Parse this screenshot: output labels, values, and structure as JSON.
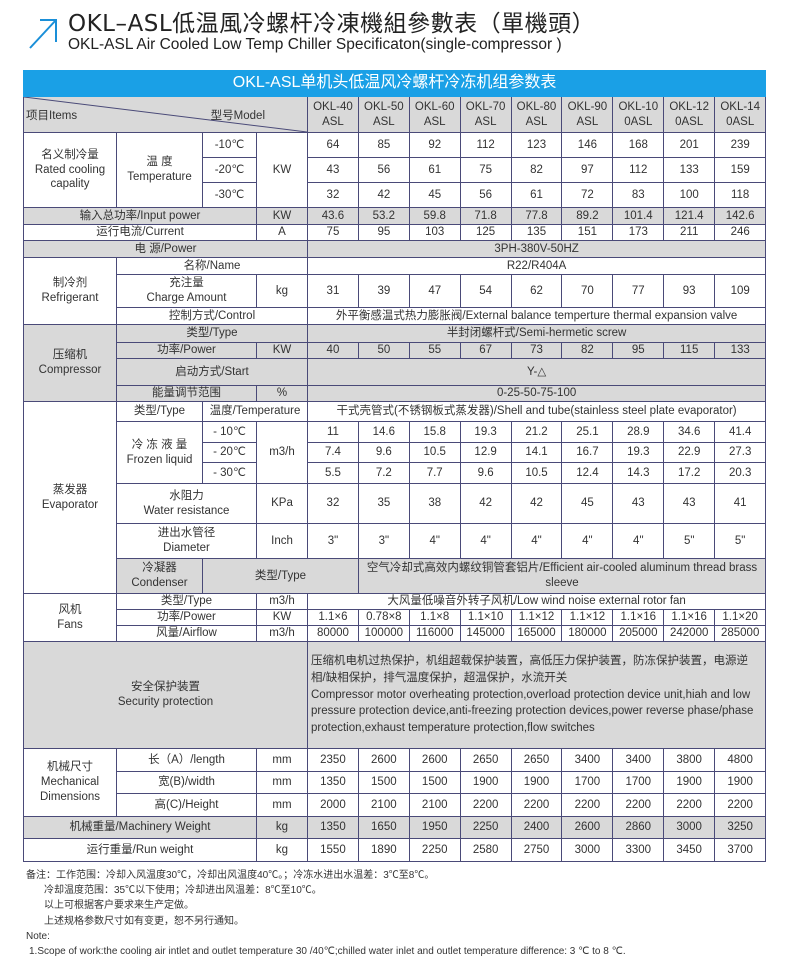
{
  "header": {
    "title_cn": "OKL–ASL低温風冷螺杆冷凍機組參數表（單機頭）",
    "title_en": "OKL-ASL Air Cooled Low Temp Chiller Specificaton(single-compressor )",
    "accent": "#1aa0e6"
  },
  "table": {
    "title": "OKL-ASL单机头低温风冷螺杆冷冻机组参数表",
    "items_label": "项目Items",
    "model_label": "型号Model",
    "models": [
      "OKL-40ASL",
      "OKL-50ASL",
      "OKL-60ASL",
      "OKL-70ASL",
      "OKL-80ASL",
      "OKL-90ASL",
      "OKL-100ASL",
      "OKL-120ASL",
      "OKL-140ASL"
    ],
    "cooling": {
      "label_cn": "名义制冷量",
      "label_en": "Rated cooling",
      "label_en2": "capality",
      "temp_cn": "温  度",
      "temp_en": "Temperature",
      "unit": "KW",
      "rows": [
        {
          "temp": "-10℃",
          "values": [
            "64",
            "85",
            "92",
            "112",
            "123",
            "146",
            "168",
            "201",
            "239"
          ]
        },
        {
          "temp": "-20℃",
          "values": [
            "43",
            "56",
            "61",
            "75",
            "82",
            "97",
            "112",
            "133",
            "159"
          ]
        },
        {
          "temp": "-30℃",
          "values": [
            "32",
            "42",
            "45",
            "56",
            "61",
            "72",
            "83",
            "100",
            "118"
          ]
        }
      ]
    },
    "input_power": {
      "label": "输入总功率/Input power",
      "unit": "KW",
      "values": [
        "43.6",
        "53.2",
        "59.8",
        "71.8",
        "77.8",
        "89.2",
        "101.4",
        "121.4",
        "142.6"
      ]
    },
    "current": {
      "label": "运行电流/Current",
      "unit": "A",
      "values": [
        "75",
        "95",
        "103",
        "125",
        "135",
        "151",
        "173",
        "211",
        "246"
      ]
    },
    "power": {
      "label": "电    源/Power",
      "value": "3PH-380V-50HZ"
    },
    "refrigerant": {
      "label_cn": "制冷剂",
      "label_en": "Refrigerant",
      "name_label": "名称/Name",
      "name_value": "R22/R404A",
      "charge_cn": "充注量",
      "charge_en": "Charge Amount",
      "charge_unit": "kg",
      "charge_values": [
        "31",
        "39",
        "47",
        "54",
        "62",
        "70",
        "77",
        "93",
        "109"
      ],
      "control_label": "控制方式/Control",
      "control_value": "外平衡感温式热力膨胀阀/External balance temperture thermal expansion valve"
    },
    "compressor": {
      "label_cn": "压缩机",
      "label_en": "Compressor",
      "type_label": "类型/Type",
      "type_value": "半封闭螺杆式/Semi-hermetic screw",
      "power_label": "功率/Power",
      "power_unit": "KW",
      "power_values": [
        "40",
        "50",
        "55",
        "67",
        "73",
        "82",
        "95",
        "115",
        "133"
      ],
      "start_label": "启动方式/Start",
      "start_value": "Y-△",
      "energy_label": "能量调节范围",
      "energy_unit": "%",
      "energy_value": "0-25-50-75-100"
    },
    "evaporator": {
      "label_cn": "蒸发器",
      "label_en": "Evaporator",
      "type_label": "类型/Type",
      "temp_label": "温度/Temperature",
      "type_value": "干式壳管式(不锈钢板式蒸发器)/Shell and tube(stainless steel plate evaporator)",
      "frozen_cn": "冷 冻 液 量",
      "frozen_en": "Frozen liquid",
      "frozen_unit": "m3/h",
      "rows": [
        {
          "temp": "- 10℃",
          "values": [
            "11",
            "14.6",
            "15.8",
            "19.3",
            "21.2",
            "25.1",
            "28.9",
            "34.6",
            "41.4"
          ]
        },
        {
          "temp": "- 20℃",
          "values": [
            "7.4",
            "9.6",
            "10.5",
            "12.9",
            "14.1",
            "16.7",
            "19.3",
            "22.9",
            "27.3"
          ]
        },
        {
          "temp": "- 30℃",
          "values": [
            "5.5",
            "7.2",
            "7.7",
            "9.6",
            "10.5",
            "12.4",
            "14.3",
            "17.2",
            "20.3"
          ]
        }
      ],
      "water_cn": "水阻力",
      "water_en": "Water resistance",
      "water_unit": "KPa",
      "water_values": [
        "32",
        "35",
        "38",
        "42",
        "42",
        "45",
        "43",
        "43",
        "41"
      ],
      "dia_cn": "进出水管径",
      "dia_en": "Diameter",
      "dia_unit": "Inch",
      "dia_values": [
        "3\"",
        "3\"",
        "4\"",
        "4\"",
        "4\"",
        "4\"",
        "4\"",
        "5\"",
        "5\""
      ]
    },
    "condenser": {
      "label_cn": "冷凝器",
      "label_en": "Condenser",
      "type_label": "类型/Type",
      "type_value": "空气冷却式高效内螺纹铜管套铝片/Efficient air-cooled aluminum thread brass sleeve"
    },
    "fans": {
      "label_cn": "风机",
      "label_en": "Fans",
      "type_label": "类型/Type",
      "type_unit": "m3/h",
      "type_value": "大风量低噪音外转子风机/Low wind noise external rotor fan",
      "power_label": "功率/Power",
      "power_unit": "KW",
      "power_values": [
        "1.1×6",
        "0.78×8",
        "1.1×8",
        "1.1×10",
        "1.1×12",
        "1.1×12",
        "1.1×16",
        "1.1×16",
        "1.1×20"
      ],
      "airflow_label": "风量/Airflow",
      "airflow_unit": "m3/h",
      "airflow_values": [
        "80000",
        "100000",
        "116000",
        "145000",
        "165000",
        "180000",
        "205000",
        "242000",
        "285000"
      ]
    },
    "security": {
      "label_cn": "安全保护装置",
      "label_en": "Security protection",
      "text_cn": "压缩机电机过热保护，机组超载保护装置，高低压力保护装置，防冻保护装置，电源逆相/缺相保护，排气温度保护，超温保护，水流开关",
      "text_en": "Compressor motor overheating protection,overload protection device unit,hiah and low pressure protection device,anti-freezing protection devices,power reverse phase/phase protection,exhaust temperature protection,flow switches"
    },
    "dimensions": {
      "label_cn": "机械尺寸",
      "label_en": "Mechanical",
      "label_en2": "Dimensions",
      "length_label": "长（A）/length",
      "width_label": "宽(B)/width",
      "height_label": "高(C)/Height",
      "unit": "mm",
      "length": [
        "2350",
        "2600",
        "2600",
        "2650",
        "2650",
        "3400",
        "3400",
        "3800",
        "4800"
      ],
      "width": [
        "1350",
        "1500",
        "1500",
        "1900",
        "1900",
        "1700",
        "1700",
        "1900",
        "1900"
      ],
      "height": [
        "2000",
        "2100",
        "2100",
        "2200",
        "2200",
        "2200",
        "2200",
        "2200",
        "2200"
      ]
    },
    "machinery_weight": {
      "label": "机械重量/Machinery Weight",
      "unit": "kg",
      "values": [
        "1350",
        "1650",
        "1950",
        "2250",
        "2400",
        "2600",
        "2860",
        "3000",
        "3250"
      ]
    },
    "run_weight": {
      "label": "运行重量/Run weight",
      "unit": "kg",
      "values": [
        "1550",
        "1890",
        "2250",
        "2580",
        "2750",
        "3000",
        "3300",
        "3450",
        "3700"
      ]
    }
  },
  "notes": {
    "cn": [
      "备注：工作范围：冷却入风温度30℃，冷却出风温度40℃。；冷冻水进出水温差：3℃至8℃。",
      "冷却温度范围：35℃以下使用；冷却进出风温差：8℃至10℃。",
      "以上可根据客户要求来生产定做。",
      "上述规格参数尺寸如有变更，恕不另行通知。"
    ],
    "note_label": "Note:",
    "en": [
      "1.Scope of work:the cooling air intlet and   outlet temperature 30  /40℃;chilled water inlet and outlet temperature difference: 3 ℃ to 8 ℃."
    ]
  }
}
